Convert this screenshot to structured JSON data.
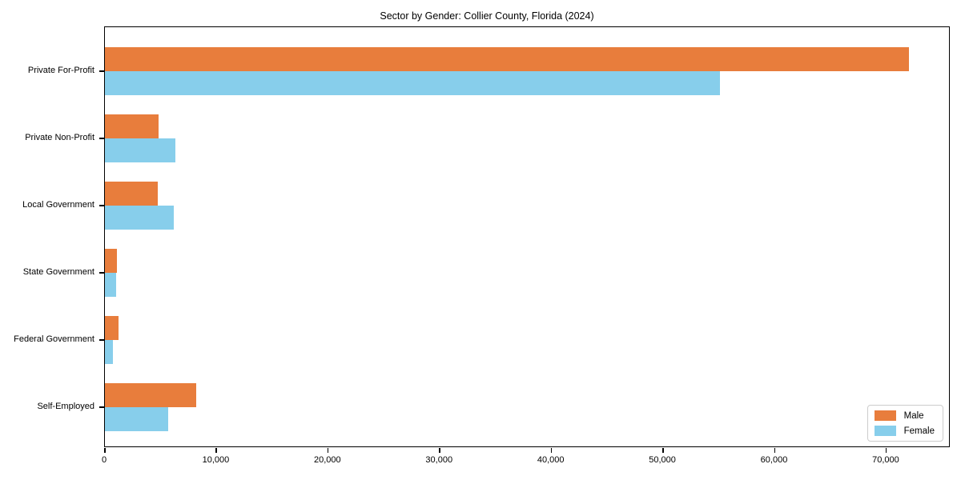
{
  "title": "Sector by Gender: Collier County, Florida (2024)",
  "chart_data": {
    "type": "bar",
    "orientation": "horizontal",
    "title": "Sector by Gender: Collier County, Florida (2024)",
    "xlabel": "",
    "ylabel": "",
    "categories": [
      "Private For-Profit",
      "Private Non-Profit",
      "Local Government",
      "State Government",
      "Federal Government",
      "Self-Employed"
    ],
    "series": [
      {
        "name": "Male",
        "color": "#e87d3c",
        "values": [
          72000,
          4800,
          4700,
          1100,
          1200,
          8200
        ]
      },
      {
        "name": "Female",
        "color": "#87ceeb",
        "values": [
          55100,
          6300,
          6200,
          1000,
          700,
          5700
        ]
      }
    ],
    "xlim": [
      0,
      75600
    ],
    "xticks": [
      0,
      10000,
      20000,
      30000,
      40000,
      50000,
      60000,
      70000
    ],
    "xtick_labels": [
      "0",
      "10,000",
      "20,000",
      "30,000",
      "40,000",
      "50,000",
      "60,000",
      "70,000"
    ],
    "grid": false,
    "legend": {
      "position": "lower right",
      "entries": [
        "Male",
        "Female"
      ]
    }
  }
}
